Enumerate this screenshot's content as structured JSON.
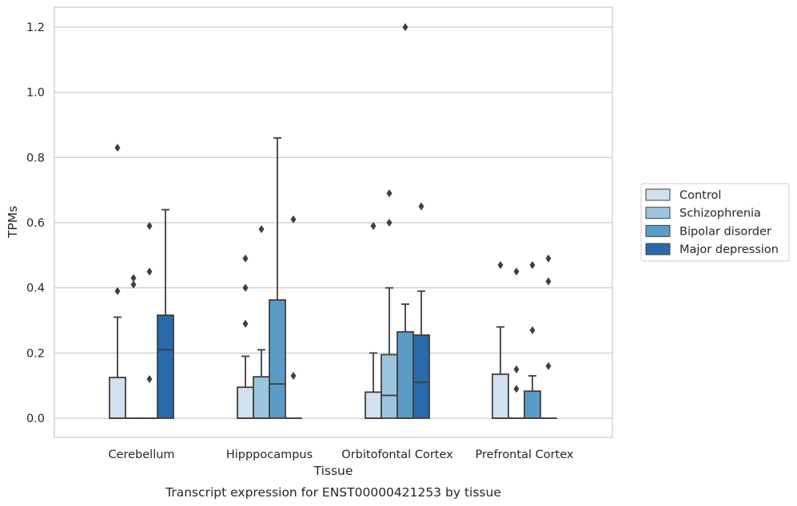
{
  "caption": "Transcript expression for ENST00000421253 by tissue",
  "chart_data": {
    "type": "box",
    "title": "",
    "xlabel": "Tissue",
    "ylabel": "TPMs",
    "ylim": [
      -0.06,
      1.26
    ],
    "yticks": [
      0.0,
      0.2,
      0.4,
      0.6,
      0.8,
      1.0,
      1.2
    ],
    "ytick_labels": [
      "0.0",
      "0.2",
      "0.4",
      "0.6",
      "0.8",
      "1.0",
      "1.2"
    ],
    "grid": true,
    "legend_position": "right",
    "categories": [
      "Cerebellum",
      "Hipppocampus",
      "Orbitofontal Cortex",
      "Prefrontal Cortex"
    ],
    "series": [
      {
        "name": "Control",
        "color": "#d2e1ef",
        "boxes": [
          {
            "q1": 0.0,
            "median": 0.0,
            "q3": 0.125,
            "whisker_low": 0.0,
            "whisker_high": 0.31,
            "outliers": [
              0.39,
              0.83
            ]
          },
          {
            "q1": 0.0,
            "median": 0.0,
            "q3": 0.095,
            "whisker_low": 0.0,
            "whisker_high": 0.19,
            "outliers": [
              0.29,
              0.4,
              0.49
            ]
          },
          {
            "q1": 0.0,
            "median": 0.0,
            "q3": 0.08,
            "whisker_low": 0.0,
            "whisker_high": 0.2,
            "outliers": [
              0.59
            ]
          },
          {
            "q1": 0.0,
            "median": 0.0,
            "q3": 0.135,
            "whisker_low": 0.0,
            "whisker_high": 0.28,
            "outliers": [
              0.47
            ]
          }
        ]
      },
      {
        "name": "Schizophrenia",
        "color": "#9cc5de",
        "boxes": [
          {
            "q1": 0.0,
            "median": 0.0,
            "q3": 0.0,
            "whisker_low": 0.0,
            "whisker_high": 0.0,
            "outliers": [
              0.41,
              0.43
            ]
          },
          {
            "q1": 0.0,
            "median": 0.0,
            "q3": 0.127,
            "whisker_low": 0.0,
            "whisker_high": 0.21,
            "outliers": [
              0.58
            ]
          },
          {
            "q1": 0.0,
            "median": 0.07,
            "q3": 0.195,
            "whisker_low": 0.0,
            "whisker_high": 0.4,
            "outliers": [
              0.6,
              0.69
            ]
          },
          {
            "q1": 0.0,
            "median": 0.0,
            "q3": 0.0,
            "whisker_low": 0.0,
            "whisker_high": 0.0,
            "outliers": [
              0.09,
              0.15,
              0.45
            ]
          }
        ]
      },
      {
        "name": "Bipolar disorder",
        "color": "#5a9bc8",
        "boxes": [
          {
            "q1": 0.0,
            "median": 0.0,
            "q3": 0.0,
            "whisker_low": 0.0,
            "whisker_high": 0.0,
            "outliers": [
              0.12,
              0.45,
              0.59
            ]
          },
          {
            "q1": 0.0,
            "median": 0.105,
            "q3": 0.363,
            "whisker_low": 0.0,
            "whisker_high": 0.86,
            "outliers": []
          },
          {
            "q1": 0.0,
            "median": 0.0,
            "q3": 0.265,
            "whisker_low": 0.0,
            "whisker_high": 0.35,
            "outliers": [
              1.2
            ]
          },
          {
            "q1": 0.0,
            "median": 0.0,
            "q3": 0.083,
            "whisker_low": 0.0,
            "whisker_high": 0.13,
            "outliers": [
              0.27,
              0.47
            ]
          }
        ]
      },
      {
        "name": "Major depression",
        "color": "#2a6aaa",
        "boxes": [
          {
            "q1": 0.0,
            "median": 0.21,
            "q3": 0.316,
            "whisker_low": 0.0,
            "whisker_high": 0.64,
            "outliers": []
          },
          {
            "q1": 0.0,
            "median": 0.0,
            "q3": 0.0,
            "whisker_low": 0.0,
            "whisker_high": 0.0,
            "outliers": [
              0.13,
              0.61
            ]
          },
          {
            "q1": 0.0,
            "median": 0.11,
            "q3": 0.255,
            "whisker_low": 0.0,
            "whisker_high": 0.39,
            "outliers": [
              0.65
            ]
          },
          {
            "q1": 0.0,
            "median": 0.0,
            "q3": 0.0,
            "whisker_low": 0.0,
            "whisker_high": 0.0,
            "outliers": [
              0.16,
              0.42,
              0.49
            ]
          }
        ]
      }
    ]
  }
}
